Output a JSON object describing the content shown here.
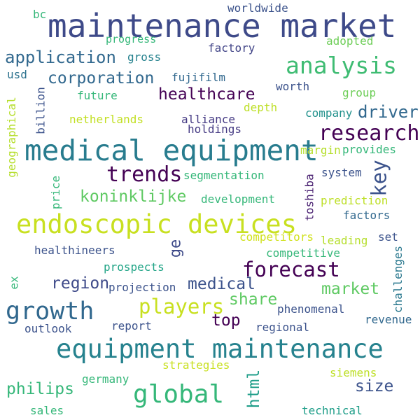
{
  "words": [
    {
      "id": "worldwide",
      "text": "worldwide",
      "color": "#3b528b"
    },
    {
      "id": "bc",
      "text": "bc",
      "color": "#35b779"
    },
    {
      "id": "maintenance-market",
      "text": "maintenance market",
      "color": "#3e4a89"
    },
    {
      "id": "progress",
      "text": "progress",
      "color": "#35b779"
    },
    {
      "id": "adopted",
      "text": "adopted",
      "color": "#6ece58"
    },
    {
      "id": "application",
      "text": "application",
      "color": "#31688e"
    },
    {
      "id": "gross",
      "text": "gross",
      "color": "#26828e"
    },
    {
      "id": "factory",
      "text": "factory",
      "color": "#414487"
    },
    {
      "id": "analysis",
      "text": "analysis",
      "color": "#3fbc73"
    },
    {
      "id": "usd",
      "text": "usd",
      "color": "#2c728e"
    },
    {
      "id": "corporation",
      "text": "corporation",
      "color": "#31688e"
    },
    {
      "id": "fujifilm",
      "text": "fujifilm",
      "color": "#31688e"
    },
    {
      "id": "worth",
      "text": "worth",
      "color": "#3b528b"
    },
    {
      "id": "billion",
      "text": "billion",
      "color": "#3b528b"
    },
    {
      "id": "geographical",
      "text": "geographical",
      "color": "#b5de2b"
    },
    {
      "id": "future",
      "text": "future",
      "color": "#35b779"
    },
    {
      "id": "healthcare",
      "text": "healthcare",
      "color": "#440154"
    },
    {
      "id": "group",
      "text": "group",
      "color": "#6ece58"
    },
    {
      "id": "depth",
      "text": "depth",
      "color": "#bddf26"
    },
    {
      "id": "driver",
      "text": "driver",
      "color": "#31688e"
    },
    {
      "id": "company",
      "text": "company",
      "color": "#21918c"
    },
    {
      "id": "netherlands",
      "text": "netherlands",
      "color": "#c2df23"
    },
    {
      "id": "alliance",
      "text": "alliance",
      "color": "#443983"
    },
    {
      "id": "holdings",
      "text": "holdings",
      "color": "#443983"
    },
    {
      "id": "research",
      "text": "research",
      "color": "#440154"
    },
    {
      "id": "medical-equipment",
      "text": "medical equipment",
      "color": "#287c8e"
    },
    {
      "id": "margin",
      "text": "margin",
      "color": "#b5de2b"
    },
    {
      "id": "provides",
      "text": "provides",
      "color": "#35b779"
    },
    {
      "id": "trends",
      "text": "trends",
      "color": "#440154"
    },
    {
      "id": "segmentation",
      "text": "segmentation",
      "color": "#35b779"
    },
    {
      "id": "system",
      "text": "system",
      "color": "#3b528b"
    },
    {
      "id": "key",
      "text": "key",
      "color": "#3b528b"
    },
    {
      "id": "koninklijke",
      "text": "koninklijke",
      "color": "#5ec962"
    },
    {
      "id": "development",
      "text": "development",
      "color": "#35b779"
    },
    {
      "id": "price",
      "text": "price",
      "color": "#35b779"
    },
    {
      "id": "toshiba",
      "text": "toshiba",
      "color": "#481f70"
    },
    {
      "id": "prediction",
      "text": "prediction",
      "color": "#bddf26"
    },
    {
      "id": "endoscopic-devices",
      "text": "endoscopic devices",
      "color": "#c8e020"
    },
    {
      "id": "factors",
      "text": "factors",
      "color": "#31688e"
    },
    {
      "id": "competitors",
      "text": "competitors",
      "color": "#d0e11c"
    },
    {
      "id": "set",
      "text": "set",
      "color": "#3b528b"
    },
    {
      "id": "leading",
      "text": "leading",
      "color": "#b5de2b"
    },
    {
      "id": "ge",
      "text": "ge",
      "color": "#3e4a89"
    },
    {
      "id": "healthineers",
      "text": "healthineers",
      "color": "#3b528b"
    },
    {
      "id": "competitive",
      "text": "competitive",
      "color": "#35b779"
    },
    {
      "id": "challenges",
      "text": "challenges",
      "color": "#2a788e"
    },
    {
      "id": "forecast",
      "text": "forecast",
      "color": "#440154"
    },
    {
      "id": "prospects",
      "text": "prospects",
      "color": "#20a486"
    },
    {
      "id": "ex",
      "text": "ex",
      "color": "#35b779"
    },
    {
      "id": "region",
      "text": "region",
      "color": "#3e4a89"
    },
    {
      "id": "projection",
      "text": "projection",
      "color": "#3b528b"
    },
    {
      "id": "medical",
      "text": "medical",
      "color": "#3b528b"
    },
    {
      "id": "market",
      "text": "market",
      "color": "#5ec962"
    },
    {
      "id": "share",
      "text": "share",
      "color": "#5ec962"
    },
    {
      "id": "players",
      "text": "players",
      "color": "#c8e020"
    },
    {
      "id": "growth",
      "text": "growth",
      "color": "#31688e"
    },
    {
      "id": "phenomenal",
      "text": "phenomenal",
      "color": "#3b528b"
    },
    {
      "id": "top",
      "text": "top",
      "color": "#440154"
    },
    {
      "id": "revenue",
      "text": "revenue",
      "color": "#31688e"
    },
    {
      "id": "outlook",
      "text": "outlook",
      "color": "#3b528b"
    },
    {
      "id": "report",
      "text": "report",
      "color": "#3b528b"
    },
    {
      "id": "regional",
      "text": "regional",
      "color": "#3b528b"
    },
    {
      "id": "equipment-maintenance",
      "text": "equipment maintenance",
      "color": "#26828e"
    },
    {
      "id": "strategies",
      "text": "strategies",
      "color": "#c8e020"
    },
    {
      "id": "siemens",
      "text": "siemens",
      "color": "#bddf26"
    },
    {
      "id": "html",
      "text": "html",
      "color": "#1f9e89"
    },
    {
      "id": "germany",
      "text": "germany",
      "color": "#35b779"
    },
    {
      "id": "size",
      "text": "size",
      "color": "#3b528b"
    },
    {
      "id": "philips",
      "text": "philips",
      "color": "#35b779"
    },
    {
      "id": "global",
      "text": "global",
      "color": "#35b779"
    },
    {
      "id": "sales",
      "text": "sales",
      "color": "#35b779"
    },
    {
      "id": "technical",
      "text": "technical",
      "color": "#1f9e89"
    }
  ]
}
